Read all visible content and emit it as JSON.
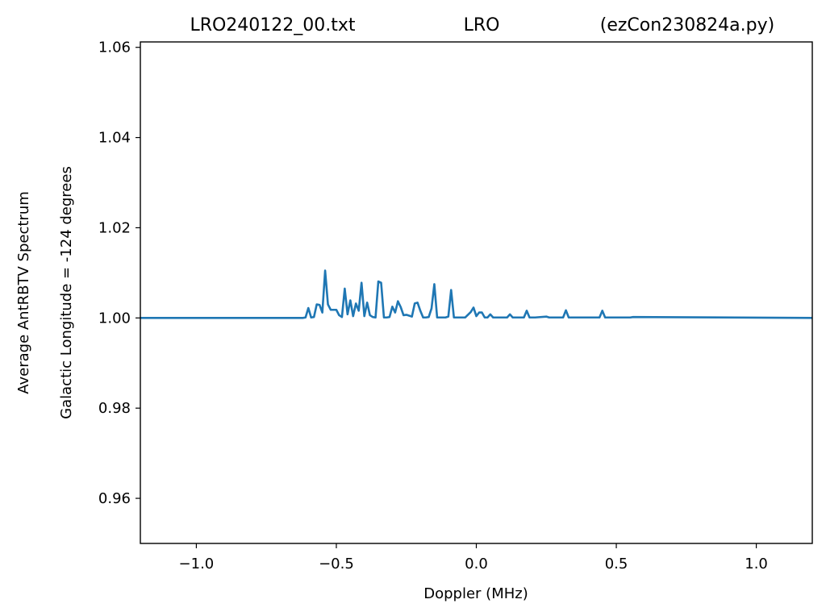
{
  "chart_data": {
    "type": "line",
    "title_parts": [
      "LRO240122_00.txt",
      "LRO",
      "(ezCon230824a.py)"
    ],
    "xlabel": "Doppler (MHz)",
    "ylabel_lines": [
      "Average AntRBTV Spectrum",
      "Galactic Longitude = -124 degrees"
    ],
    "xlim": [
      -1.2,
      1.2
    ],
    "ylim": [
      0.95,
      1.0612
    ],
    "x_ticks": [
      -1.0,
      -0.5,
      0.0,
      0.5,
      1.0
    ],
    "x_tick_labels": [
      "−1.0",
      "−0.5",
      "0.0",
      "0.5",
      "1.0"
    ],
    "y_ticks": [
      0.96,
      0.98,
      1.0,
      1.02,
      1.04,
      1.06
    ],
    "y_tick_labels": [
      "0.96",
      "0.98",
      "1.00",
      "1.02",
      "1.04",
      "1.06"
    ],
    "grid": false,
    "legend": "none",
    "series": [
      {
        "color": "#1f77b4",
        "x": [
          -1.2,
          -0.62,
          -0.61,
          -0.6,
          -0.59,
          -0.58,
          -0.57,
          -0.56,
          -0.55,
          -0.54,
          -0.53,
          -0.52,
          -0.51,
          -0.5,
          -0.49,
          -0.48,
          -0.47,
          -0.46,
          -0.45,
          -0.44,
          -0.43,
          -0.42,
          -0.41,
          -0.4,
          -0.39,
          -0.38,
          -0.37,
          -0.36,
          -0.35,
          -0.34,
          -0.33,
          -0.32,
          -0.31,
          -0.3,
          -0.29,
          -0.28,
          -0.27,
          -0.26,
          -0.25,
          -0.24,
          -0.23,
          -0.22,
          -0.21,
          -0.2,
          -0.19,
          -0.18,
          -0.17,
          -0.16,
          -0.15,
          -0.14,
          -0.13,
          -0.12,
          -0.11,
          -0.1,
          -0.09,
          -0.08,
          -0.07,
          -0.06,
          -0.05,
          -0.04,
          -0.03,
          -0.02,
          -0.01,
          0.0,
          0.01,
          0.02,
          0.03,
          0.04,
          0.05,
          0.06,
          0.07,
          0.08,
          0.09,
          0.1,
          0.11,
          0.12,
          0.13,
          0.14,
          0.15,
          0.16,
          0.17,
          0.18,
          0.19,
          0.2,
          0.21,
          0.25,
          0.26,
          0.27,
          0.31,
          0.32,
          0.33,
          0.34,
          0.43,
          0.44,
          0.45,
          0.46,
          0.47,
          0.55,
          0.56,
          1.2
        ],
        "y": [
          1.0,
          1.0,
          1.0001,
          1.0022,
          1.0001,
          1.0002,
          1.003,
          1.0029,
          1.0012,
          1.0105,
          1.003,
          1.0018,
          1.0018,
          1.0018,
          1.0006,
          1.0002,
          1.0065,
          1.0008,
          1.0039,
          1.0004,
          1.0032,
          1.0016,
          1.0078,
          1.0004,
          1.0034,
          1.0006,
          1.0002,
          1.0001,
          1.0081,
          1.0078,
          1.0001,
          1.0001,
          1.0002,
          1.0025,
          1.0012,
          1.0037,
          1.0024,
          1.0006,
          1.0007,
          1.0005,
          1.0003,
          1.0032,
          1.0034,
          1.0016,
          1.0001,
          1.0001,
          1.0002,
          1.0021,
          1.0075,
          1.0001,
          1.0001,
          1.0001,
          1.0001,
          1.0003,
          1.0062,
          1.0001,
          1.0001,
          1.0001,
          1.0001,
          1.0001,
          1.0007,
          1.0013,
          1.0023,
          1.0004,
          1.0012,
          1.0012,
          1.0001,
          1.0001,
          1.0008,
          1.0001,
          1.0001,
          1.0001,
          1.0001,
          1.0001,
          1.0001,
          1.0008,
          1.0001,
          1.0001,
          1.0001,
          1.0001,
          1.0001,
          1.0016,
          1.0001,
          1.0001,
          1.0001,
          1.0003,
          1.0001,
          1.0001,
          1.0001,
          1.0017,
          1.0001,
          1.0001,
          1.0001,
          1.0001,
          1.0016,
          1.0001,
          1.0001,
          1.0001,
          1.0002,
          1.0
        ]
      }
    ]
  }
}
